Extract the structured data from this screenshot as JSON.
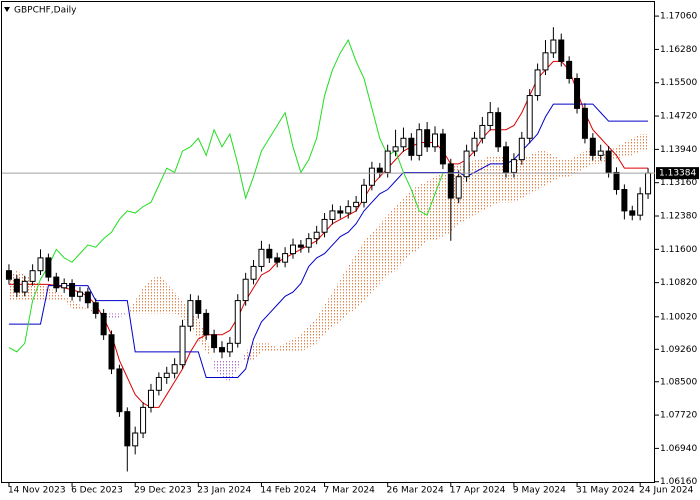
{
  "chart_data": {
    "type": "candlestick",
    "title": "GBPCHF,Daily",
    "categories": [
      "14 Nov 2023",
      null,
      null,
      null,
      null,
      null,
      null,
      null,
      "6 Dec 2023",
      null,
      null,
      null,
      null,
      null,
      null,
      null,
      "29 Dec 2023",
      null,
      null,
      null,
      null,
      null,
      null,
      null,
      "23 Jan 2024",
      null,
      null,
      null,
      null,
      null,
      null,
      null,
      "14 Feb 2024",
      null,
      null,
      null,
      null,
      null,
      null,
      null,
      "7 Mar 2024",
      null,
      null,
      null,
      null,
      null,
      null,
      null,
      "26 Mar 2024",
      null,
      null,
      null,
      null,
      null,
      null,
      null,
      "17 Apr 2024",
      null,
      null,
      null,
      null,
      null,
      null,
      null,
      "9 May 2024",
      null,
      null,
      null,
      null,
      null,
      null,
      null,
      "31 May 2024",
      null,
      null,
      null,
      null,
      null,
      null,
      null,
      "24 Jun 2024",
      null
    ],
    "candles": [
      [
        1.111,
        1.1125,
        1.1078,
        1.109
      ],
      [
        1.109,
        1.11,
        1.1048,
        1.106
      ],
      [
        1.106,
        1.1098,
        1.105,
        1.1085
      ],
      [
        1.1085,
        1.1125,
        1.1075,
        1.111
      ],
      [
        1.111,
        1.116,
        1.11,
        1.114
      ],
      [
        1.114,
        1.115,
        1.1085,
        1.1095
      ],
      [
        1.1095,
        1.1105,
        1.106,
        1.107
      ],
      [
        1.107,
        1.1092,
        1.1058,
        1.108
      ],
      [
        1.108,
        1.109,
        1.104,
        1.105
      ],
      [
        1.105,
        1.1072,
        1.1038,
        1.106
      ],
      [
        1.106,
        1.107,
        1.1022,
        1.1035
      ],
      [
        1.1035,
        1.1045,
        1.0998,
        1.101
      ],
      [
        1.101,
        1.102,
        1.0948,
        1.096
      ],
      [
        1.096,
        1.097,
        1.0868,
        1.088
      ],
      [
        1.088,
        1.089,
        1.0768,
        1.078
      ],
      [
        1.078,
        1.079,
        1.064,
        1.07
      ],
      [
        1.07,
        1.0745,
        1.068,
        1.073
      ],
      [
        1.073,
        1.0802,
        1.0718,
        1.079
      ],
      [
        1.079,
        1.0845,
        1.0778,
        1.083
      ],
      [
        1.083,
        1.0872,
        1.0818,
        1.086
      ],
      [
        1.086,
        1.0885,
        1.0845,
        1.087
      ],
      [
        1.087,
        1.0905,
        1.0858,
        1.089
      ],
      [
        1.089,
        1.0995,
        1.088,
        1.098
      ],
      [
        1.098,
        1.1055,
        1.0968,
        1.104
      ],
      [
        1.104,
        1.1052,
        1.0998,
        1.101
      ],
      [
        1.101,
        1.102,
        1.0948,
        1.096
      ],
      [
        1.096,
        1.0972,
        1.0918,
        1.093
      ],
      [
        1.093,
        1.0945,
        1.0905,
        1.092
      ],
      [
        1.092,
        1.0955,
        1.0908,
        1.094
      ],
      [
        1.094,
        1.1055,
        1.093,
        1.104
      ],
      [
        1.104,
        1.1105,
        1.1028,
        1.109
      ],
      [
        1.109,
        1.1135,
        1.1078,
        1.112
      ],
      [
        1.112,
        1.118,
        1.1108,
        1.116
      ],
      [
        1.116,
        1.1172,
        1.1128,
        1.114
      ],
      [
        1.114,
        1.1152,
        1.1118,
        1.113
      ],
      [
        1.113,
        1.1165,
        1.1118,
        1.115
      ],
      [
        1.115,
        1.1185,
        1.1138,
        1.117
      ],
      [
        1.117,
        1.1182,
        1.1152,
        1.1165
      ],
      [
        1.1165,
        1.1198,
        1.1152,
        1.1185
      ],
      [
        1.1185,
        1.1215,
        1.1172,
        1.12
      ],
      [
        1.12,
        1.1245,
        1.1188,
        1.123
      ],
      [
        1.123,
        1.1265,
        1.1218,
        1.125
      ],
      [
        1.125,
        1.1262,
        1.1232,
        1.1245
      ],
      [
        1.1245,
        1.1275,
        1.1232,
        1.126
      ],
      [
        1.126,
        1.1285,
        1.1248,
        1.127
      ],
      [
        1.127,
        1.1325,
        1.1258,
        1.131
      ],
      [
        1.131,
        1.1365,
        1.1298,
        1.135
      ],
      [
        1.135,
        1.1362,
        1.1328,
        1.134
      ],
      [
        1.134,
        1.1405,
        1.1328,
        1.139
      ],
      [
        1.139,
        1.144,
        1.1378,
        1.14
      ],
      [
        1.14,
        1.1445,
        1.1388,
        1.142
      ],
      [
        1.142,
        1.1432,
        1.1368,
        1.138
      ],
      [
        1.138,
        1.1455,
        1.1368,
        1.144
      ],
      [
        1.144,
        1.1458,
        1.1388,
        1.14
      ],
      [
        1.14,
        1.1448,
        1.1388,
        1.143
      ],
      [
        1.143,
        1.1442,
        1.1348,
        1.136
      ],
      [
        1.136,
        1.1372,
        1.118,
        1.128
      ],
      [
        1.128,
        1.1345,
        1.1268,
        1.133
      ],
      [
        1.133,
        1.1405,
        1.1318,
        1.139
      ],
      [
        1.139,
        1.1435,
        1.1378,
        1.142
      ],
      [
        1.142,
        1.147,
        1.1408,
        1.145
      ],
      [
        1.145,
        1.1505,
        1.1438,
        1.148
      ],
      [
        1.148,
        1.1492,
        1.1388,
        1.14
      ],
      [
        1.14,
        1.1412,
        1.1328,
        1.134
      ],
      [
        1.134,
        1.1385,
        1.1328,
        1.137
      ],
      [
        1.137,
        1.1435,
        1.1358,
        1.142
      ],
      [
        1.142,
        1.1535,
        1.1408,
        1.152
      ],
      [
        1.152,
        1.1595,
        1.1508,
        1.158
      ],
      [
        1.158,
        1.165,
        1.1568,
        1.162
      ],
      [
        1.162,
        1.168,
        1.1608,
        1.165
      ],
      [
        1.165,
        1.1665,
        1.1588,
        1.16
      ],
      [
        1.16,
        1.1612,
        1.1548,
        1.156
      ],
      [
        1.156,
        1.1572,
        1.1478,
        1.149
      ],
      [
        1.149,
        1.1502,
        1.1408,
        1.142
      ],
      [
        1.142,
        1.1432,
        1.1368,
        1.138
      ],
      [
        1.138,
        1.1405,
        1.1368,
        1.139
      ],
      [
        1.139,
        1.1402,
        1.1328,
        1.134
      ],
      [
        1.134,
        1.1352,
        1.1288,
        1.13
      ],
      [
        1.13,
        1.1312,
        1.123,
        1.125
      ],
      [
        1.125,
        1.1262,
        1.1228,
        1.124
      ],
      [
        1.124,
        1.1305,
        1.1228,
        1.129
      ],
      [
        1.129,
        1.135,
        1.1278,
        1.13384
      ]
    ],
    "up_color": "#ffffff",
    "down_color": "#000000",
    "tenkan": {
      "color": "#dd0000",
      "values": [
        1.1078,
        1.1078,
        1.1078,
        1.1078,
        1.1078,
        1.1078,
        1.1075,
        1.107,
        1.1065,
        1.106,
        1.105,
        1.103,
        1.1,
        1.096,
        1.09,
        1.086,
        1.082,
        1.08,
        1.079,
        1.079,
        1.082,
        1.085,
        1.088,
        1.092,
        1.095,
        1.096,
        1.096,
        1.096,
        1.097,
        1.1,
        1.104,
        1.107,
        1.11,
        1.111,
        1.113,
        1.114,
        1.115,
        1.116,
        1.117,
        1.118,
        1.12,
        1.122,
        1.123,
        1.124,
        1.125,
        1.128,
        1.131,
        1.133,
        1.135,
        1.137,
        1.139,
        1.14,
        1.141,
        1.141,
        1.141,
        1.139,
        1.136,
        1.136,
        1.137,
        1.139,
        1.142,
        1.144,
        1.144,
        1.144,
        1.145,
        1.148,
        1.152,
        1.156,
        1.158,
        1.16,
        1.16,
        1.158,
        1.153,
        1.148,
        1.144,
        1.142,
        1.14,
        1.138,
        1.135,
        1.135,
        1.135,
        1.135
      ]
    },
    "kijun": {
      "color": "#0000cc",
      "values": [
        1.0985,
        1.0985,
        1.0985,
        1.0985,
        1.0985,
        1.1075,
        1.1075,
        1.1075,
        1.1075,
        1.1075,
        1.1075,
        1.104,
        1.104,
        1.104,
        1.104,
        1.104,
        1.092,
        1.092,
        1.092,
        1.092,
        1.092,
        1.092,
        1.092,
        1.092,
        1.092,
        1.086,
        1.086,
        1.086,
        1.086,
        1.086,
        1.088,
        1.095,
        1.099,
        1.101,
        1.103,
        1.105,
        1.106,
        1.108,
        1.112,
        1.114,
        1.115,
        1.117,
        1.119,
        1.12,
        1.122,
        1.125,
        1.127,
        1.129,
        1.13,
        1.132,
        1.134,
        1.134,
        1.134,
        1.134,
        1.134,
        1.134,
        1.134,
        1.134,
        1.133,
        1.134,
        1.135,
        1.136,
        1.136,
        1.136,
        1.137,
        1.139,
        1.141,
        1.143,
        1.147,
        1.15,
        1.15,
        1.15,
        1.15,
        1.15,
        1.15,
        1.148,
        1.146,
        1.146,
        1.146,
        1.146,
        1.146,
        1.146
      ]
    },
    "chikou_color": "#22dd22",
    "span_a": {
      "color": "#e8824a",
      "values": [
        1.11,
        1.111,
        1.11,
        1.109,
        1.108,
        1.107,
        1.106,
        1.105,
        1.104,
        1.103,
        1.102,
        1.101,
        1.1,
        1.1,
        1.1,
        1.101,
        1.104,
        1.107,
        1.109,
        1.11,
        1.108,
        1.106,
        1.104,
        1.101,
        1.1,
        1.096,
        1.088,
        1.086,
        1.085,
        1.088,
        1.092,
        1.094,
        1.094,
        1.094,
        1.093,
        1.094,
        1.095,
        1.096,
        1.098,
        1.1,
        1.103,
        1.106,
        1.109,
        1.112,
        1.115,
        1.118,
        1.12,
        1.122,
        1.124,
        1.126,
        1.128,
        1.13,
        1.131,
        1.132,
        1.133,
        1.134,
        1.135,
        1.136,
        1.136,
        1.137,
        1.137,
        1.138,
        1.138,
        1.138,
        1.137,
        1.137,
        1.138,
        1.139,
        1.139,
        1.138,
        1.137,
        1.137,
        1.138,
        1.139,
        1.14,
        1.138,
        1.139,
        1.14,
        1.141,
        1.142,
        1.143,
        1.143
      ]
    },
    "span_b": {
      "color": "#b070d0",
      "values": [
        1.104,
        1.104,
        1.104,
        1.104,
        1.104,
        1.104,
        1.104,
        1.104,
        1.102,
        1.102,
        1.102,
        1.102,
        1.101,
        1.101,
        1.101,
        1.101,
        1.101,
        1.101,
        1.101,
        1.101,
        1.101,
        1.101,
        1.1,
        1.098,
        1.095,
        1.092,
        1.09,
        1.09,
        1.09,
        1.09,
        1.09,
        1.09,
        1.092,
        1.092,
        1.092,
        1.092,
        1.092,
        1.092,
        1.093,
        1.094,
        1.096,
        1.098,
        1.099,
        1.101,
        1.102,
        1.104,
        1.106,
        1.108,
        1.11,
        1.111,
        1.113,
        1.115,
        1.116,
        1.118,
        1.118,
        1.119,
        1.12,
        1.122,
        1.123,
        1.124,
        1.125,
        1.126,
        1.127,
        1.127,
        1.127,
        1.128,
        1.129,
        1.13,
        1.131,
        1.132,
        1.133,
        1.133,
        1.134,
        1.135,
        1.136,
        1.136,
        1.137,
        1.137,
        1.138,
        1.138,
        1.139,
        1.139
      ]
    },
    "ylim": [
      1.0613,
      1.1739
    ],
    "yticks": [
      {
        "value": 1.1706,
        "label": "1.17060"
      },
      {
        "value": 1.1628,
        "label": "1.16280"
      },
      {
        "value": 1.155,
        "label": "1.15500"
      },
      {
        "value": 1.1472,
        "label": "1.14720"
      },
      {
        "value": 1.1394,
        "label": "1.13940"
      },
      {
        "value": 1.1316,
        "label": "1.13160"
      },
      {
        "value": 1.1238,
        "label": "1.12380"
      },
      {
        "value": 1.116,
        "label": "1.11600"
      },
      {
        "value": 1.1082,
        "label": "1.10820"
      },
      {
        "value": 1.1002,
        "label": "1.10020"
      },
      {
        "value": 1.0926,
        "label": "1.09260"
      },
      {
        "value": 1.085,
        "label": "1.08500"
      },
      {
        "value": 1.0772,
        "label": "1.07720"
      },
      {
        "value": 1.0694,
        "label": "1.06940"
      },
      {
        "value": 1.0616,
        "label": "1.06160"
      }
    ]
  }
}
